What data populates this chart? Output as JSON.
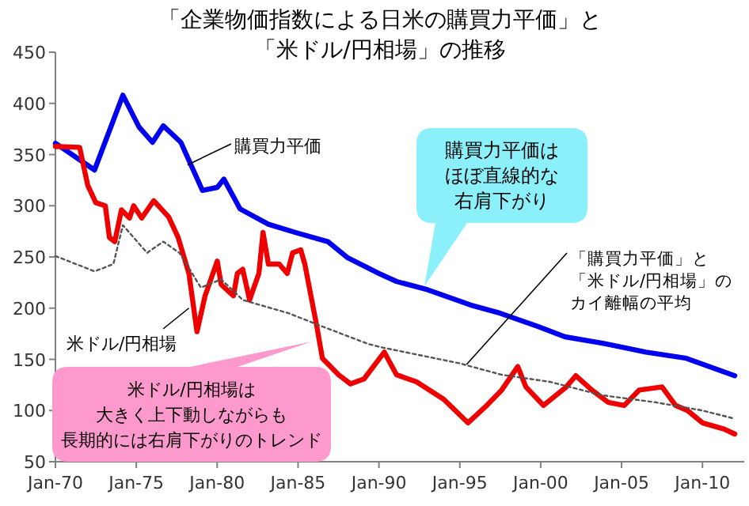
{
  "chart_data": {
    "type": "line",
    "title": "「企業物価指数による日米の購買力平価」と「米ドル/円相場」の推移",
    "xlim": [
      "1970-01",
      "2012-08"
    ],
    "xticks": [
      {
        "value": "1970-01",
        "label": "Jan-70"
      },
      {
        "value": "1975-01",
        "label": "Jan-75"
      },
      {
        "value": "1980-01",
        "label": "Jan-80"
      },
      {
        "value": "1985-01",
        "label": "Jan-85"
      },
      {
        "value": "1990-01",
        "label": "Jan-90"
      },
      {
        "value": "1995-01",
        "label": "Jan-95"
      },
      {
        "value": "2000-01",
        "label": "Jan-00"
      },
      {
        "value": "2005-01",
        "label": "Jan-05"
      },
      {
        "value": "2010-01",
        "label": "Jan-10"
      }
    ],
    "ylim": [
      50,
      450
    ],
    "yticks": [
      50,
      100,
      150,
      200,
      250,
      300,
      350,
      400,
      450
    ],
    "grid": false,
    "marker": "none",
    "series": [
      {
        "color": "#0000ee",
        "line_style": "solid",
        "x": [
          "1970-01",
          "1972-06",
          "1974-03",
          "1975-03",
          "1976-01",
          "1976-09",
          "1977-10",
          "1979-02",
          "1980-01",
          "1980-06",
          "1981-06",
          "1983-03",
          "1984-11",
          "1986-11",
          "1988-02",
          "1990-01",
          "1991-02",
          "1993-01",
          "1995-09",
          "1997-07",
          "1999-11",
          "2001-07",
          "2003-10",
          "2006-07",
          "2009-01",
          "2012-01"
        ],
        "values": [
          361,
          335,
          408,
          377,
          362,
          378,
          362,
          315,
          318,
          326,
          297,
          282,
          274,
          265,
          249,
          234,
          226,
          218,
          203,
          195,
          182,
          172,
          166,
          157,
          151,
          134
        ]
      },
      {
        "color": "#ee0000",
        "line_style": "solid",
        "x": [
          "1970-01",
          "1971-07",
          "1972-01",
          "1972-07",
          "1973-02",
          "1973-05",
          "1973-09",
          "1974-02",
          "1974-08",
          "1974-11",
          "1975-05",
          "1976-02",
          "1977-01",
          "1977-08",
          "1978-04",
          "1978-10",
          "1979-04",
          "1980-01",
          "1980-04",
          "1981-01",
          "1981-04",
          "1981-08",
          "1982-01",
          "1982-08",
          "1982-11",
          "1983-03",
          "1983-11",
          "1984-05",
          "1984-09",
          "1985-03",
          "1985-06",
          "1986-03",
          "1986-07",
          "1987-07",
          "1988-04",
          "1989-02",
          "1990-05",
          "1991-02",
          "1992-05",
          "1994-01",
          "1995-07",
          "1996-09",
          "1997-08",
          "1998-08",
          "1999-02",
          "2000-03",
          "2001-08",
          "2002-03",
          "2003-03",
          "2004-03",
          "2005-03",
          "2006-02",
          "2007-07",
          "2008-05",
          "2009-02",
          "2010-01",
          "2011-05",
          "2012-01"
        ],
        "values": [
          358,
          357,
          320,
          303,
          300,
          269,
          265,
          296,
          288,
          300,
          288,
          305,
          289,
          269,
          234,
          177,
          212,
          246,
          223,
          212,
          234,
          238,
          208,
          234,
          274,
          243,
          243,
          234,
          254,
          257,
          243,
          182,
          151,
          135,
          126,
          131,
          157,
          135,
          128,
          111,
          88,
          105,
          120,
          143,
          123,
          105,
          123,
          134,
          120,
          108,
          105,
          120,
          123,
          105,
          100,
          88,
          82,
          77
        ]
      },
      {
        "color": "#555555",
        "line_style": "dotted",
        "x": [
          "1970-01",
          "1972-06",
          "1973-08",
          "1974-03",
          "1975-09",
          "1976-09",
          "1977-09",
          "1979-01",
          "1980-04",
          "1981-08",
          "1984-06",
          "1986-07",
          "1989-05",
          "1990-02",
          "1995-01",
          "1997-08",
          "2000-08",
          "2003-10",
          "2007-02",
          "2010-01",
          "2012-01"
        ],
        "values": [
          251,
          236,
          243,
          281,
          254,
          265,
          254,
          220,
          228,
          208,
          195,
          182,
          165,
          162,
          146,
          135,
          128,
          115,
          108,
          100,
          92
        ]
      }
    ],
    "annotations": [
      {
        "text": "購買力平価",
        "x": "1978-03",
        "y": 340
      },
      {
        "text": "米ドル/円相場",
        "x": "1978-04",
        "y": 200
      },
      {
        "text": "「購買力平価」と「米ドル/円相場」のカイ離幅の平均",
        "x": "1995-06",
        "y": 145
      },
      "購買力平価はほぼ直線的な右肩下がり",
      "米ドル/円相場は大きく上下動しながらも長期的には右肩下がりのトレンド"
    ]
  }
}
